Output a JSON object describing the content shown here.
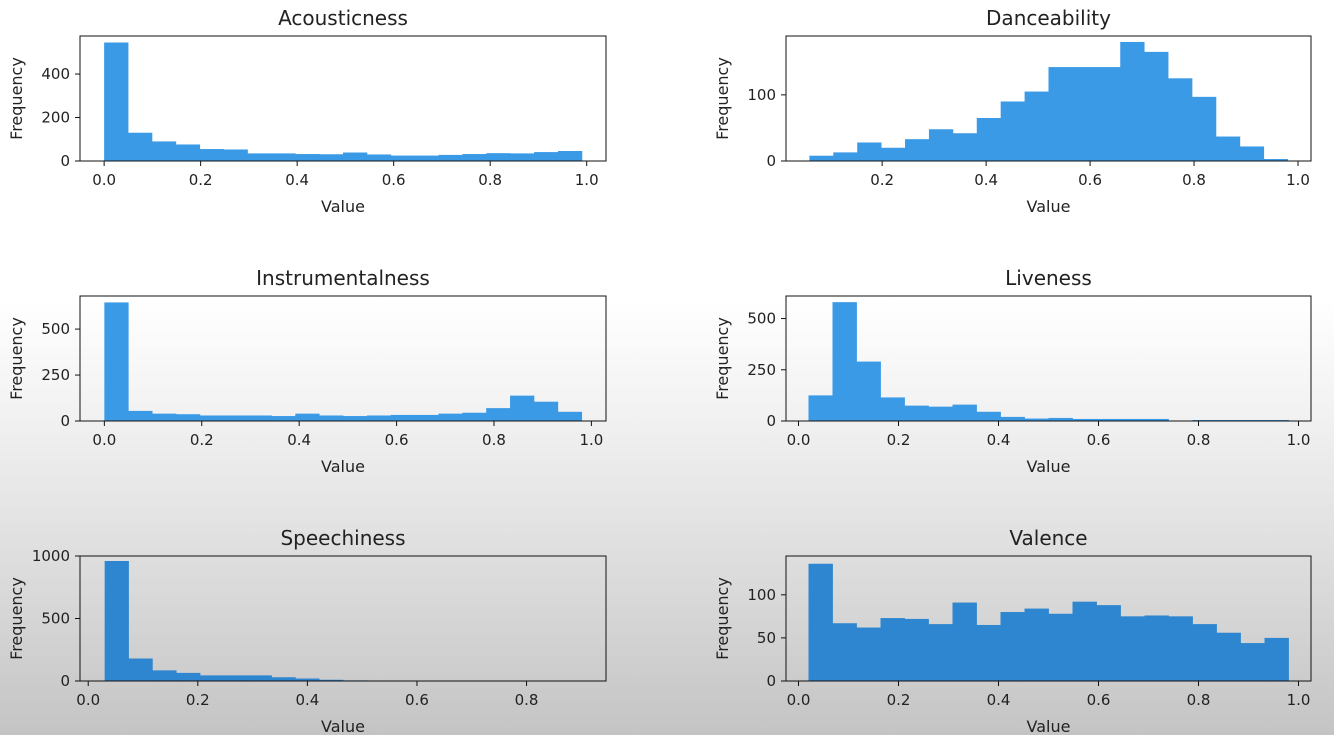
{
  "chart_data": [
    {
      "type": "bar",
      "title": "Acousticness",
      "xlabel": "Value",
      "ylabel": "Frequency",
      "bin_range": [
        0.0,
        0.99
      ],
      "values": [
        545,
        130,
        90,
        76,
        55,
        53,
        35,
        35,
        32,
        31,
        39,
        30,
        25,
        25,
        28,
        32,
        36,
        35,
        41,
        46
      ],
      "xlim": [
        -0.05,
        1.04
      ],
      "ylim": [
        0,
        575
      ],
      "xticks": [
        "0.0",
        "0.2",
        "0.4",
        "0.6",
        "0.8",
        "1.0"
      ],
      "xtick_values": [
        0.0,
        0.2,
        0.4,
        0.6,
        0.8,
        1.0
      ],
      "yticks": [
        "0",
        "200",
        "400"
      ],
      "ytick_values": [
        0,
        200,
        400
      ],
      "color": "#3b9ae6"
    },
    {
      "type": "bar",
      "title": "Danceability",
      "xlabel": "Value",
      "ylabel": "Frequency",
      "bin_range": [
        0.06,
        0.98
      ],
      "values": [
        8,
        13,
        28,
        20,
        33,
        48,
        42,
        65,
        90,
        105,
        142,
        142,
        142,
        180,
        165,
        125,
        97,
        37,
        22,
        3
      ],
      "xlim": [
        0.015,
        1.025
      ],
      "ylim": [
        0,
        189
      ],
      "xticks": [
        "0.2",
        "0.4",
        "0.6",
        "0.8",
        "1.0"
      ],
      "xtick_values": [
        0.2,
        0.4,
        0.6,
        0.8,
        1.0
      ],
      "yticks": [
        "0",
        "100"
      ],
      "ytick_values": [
        0,
        100
      ],
      "color": "#3b9ae6"
    },
    {
      "type": "bar",
      "title": "Instrumentalness",
      "xlabel": "Value",
      "ylabel": "Frequency",
      "bin_range": [
        0.0,
        0.98
      ],
      "values": [
        645,
        55,
        40,
        37,
        30,
        30,
        30,
        27,
        40,
        30,
        27,
        30,
        33,
        33,
        40,
        45,
        70,
        138,
        105,
        50
      ],
      "xlim": [
        -0.05,
        1.03
      ],
      "ylim": [
        0,
        680
      ],
      "xticks": [
        "0.0",
        "0.2",
        "0.4",
        "0.6",
        "0.8",
        "1.0"
      ],
      "xtick_values": [
        0.0,
        0.2,
        0.4,
        0.6,
        0.8,
        1.0
      ],
      "yticks": [
        "0",
        "250",
        "500"
      ],
      "ytick_values": [
        0,
        250,
        500
      ],
      "color": "#3b9ae6"
    },
    {
      "type": "bar",
      "title": "Liveness",
      "xlabel": "Value",
      "ylabel": "Frequency",
      "bin_range": [
        0.02,
        0.98
      ],
      "values": [
        125,
        580,
        290,
        115,
        75,
        70,
        80,
        45,
        20,
        12,
        15,
        10,
        10,
        10,
        10,
        0,
        5,
        5,
        5,
        5
      ],
      "xlim": [
        -0.025,
        1.025
      ],
      "ylim": [
        0,
        610
      ],
      "xticks": [
        "0.0",
        "0.2",
        "0.4",
        "0.6",
        "0.8",
        "1.0"
      ],
      "xtick_values": [
        0.0,
        0.2,
        0.4,
        0.6,
        0.8,
        1.0
      ],
      "yticks": [
        "0",
        "250",
        "500"
      ],
      "ytick_values": [
        0,
        250,
        500
      ],
      "color": "#3b9ae6"
    },
    {
      "type": "bar",
      "title": "Speechiness",
      "xlabel": "Value",
      "ylabel": "Frequency",
      "bin_range": [
        0.03,
        0.9
      ],
      "values": [
        960,
        180,
        85,
        65,
        45,
        45,
        45,
        30,
        20,
        10,
        5,
        3,
        3,
        3,
        3,
        2,
        2,
        2,
        2,
        2
      ],
      "xlim": [
        -0.015,
        0.945
      ],
      "ylim": [
        0,
        1000
      ],
      "xticks": [
        "0.0",
        "0.2",
        "0.4",
        "0.6",
        "0.8"
      ],
      "xtick_values": [
        0.0,
        0.2,
        0.4,
        0.6,
        0.8
      ],
      "yticks": [
        "0",
        "500",
        "1000"
      ],
      "ytick_values": [
        0,
        500,
        1000
      ],
      "color": "#2d86cf"
    },
    {
      "type": "bar",
      "title": "Valence",
      "xlabel": "Value",
      "ylabel": "Frequency",
      "bin_range": [
        0.02,
        0.98
      ],
      "values": [
        136,
        67,
        62,
        73,
        72,
        66,
        91,
        65,
        80,
        84,
        78,
        92,
        88,
        75,
        76,
        75,
        66,
        56,
        44,
        50
      ],
      "xlim": [
        -0.025,
        1.025
      ],
      "ylim": [
        0,
        145
      ],
      "xticks": [
        "0.0",
        "0.2",
        "0.4",
        "0.6",
        "0.8",
        "1.0"
      ],
      "xtick_values": [
        0.0,
        0.2,
        0.4,
        0.6,
        0.8,
        1.0
      ],
      "yticks": [
        "0",
        "50",
        "100"
      ],
      "ytick_values": [
        0,
        50,
        100
      ],
      "color": "#2d86cf"
    }
  ]
}
